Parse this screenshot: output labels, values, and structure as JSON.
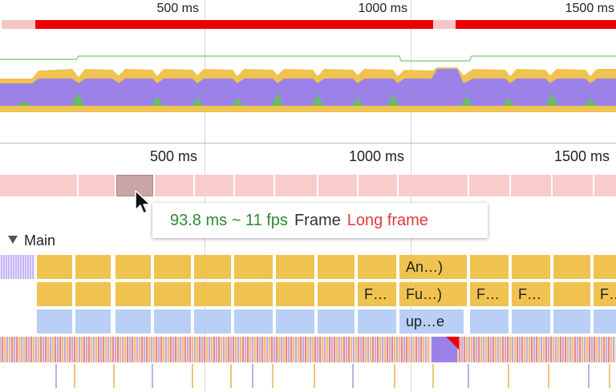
{
  "overview": {
    "ticks": [
      "500 ms",
      "1000 ms",
      "1500 ms"
    ]
  },
  "timeline": {
    "ticks": [
      "500 ms",
      "1000 ms",
      "1500 ms"
    ]
  },
  "tooltip": {
    "fps": "93.8 ms ~ 11 fps",
    "frame": "Frame",
    "long": "Long frame"
  },
  "main": {
    "title": "Main",
    "blocks": {
      "row1": [
        "An…)"
      ],
      "row2": [
        "F…",
        "Fu…)",
        "F…",
        "F…",
        "F…"
      ],
      "row3": [
        "up…e"
      ]
    }
  },
  "colors": {
    "fps_red": "#ee0000",
    "fps_pink": "#f5c6c6",
    "scripting": "#f0c24f",
    "rendering": "#9c82e8",
    "painting": "#6db96d",
    "frame_pink": "#f9cccc",
    "frame_selected": "#c9a4a4",
    "long_frame": "#e2393a"
  }
}
